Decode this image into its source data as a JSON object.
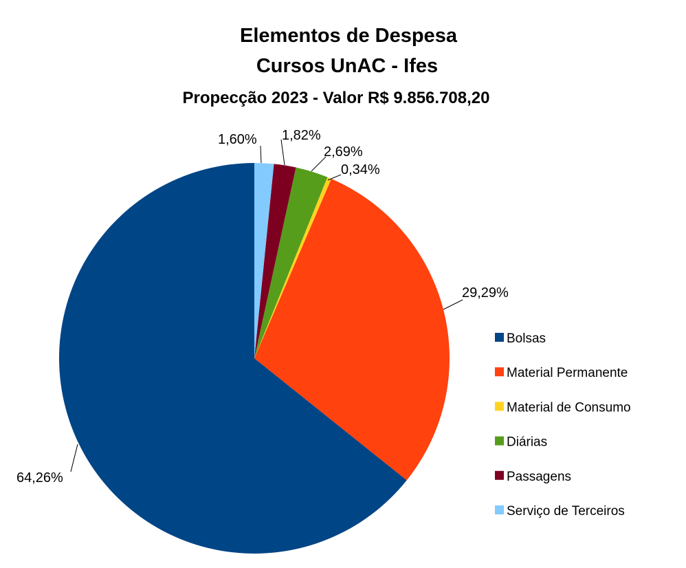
{
  "chart_data": {
    "type": "pie",
    "title": "Elementos de Despesa",
    "subtitle": "Cursos UnAC - Ifes",
    "subtitle2": "Propecção 2023 - Valor R$ 9.856.708,20",
    "legend_position": "right",
    "categories": [
      "Bolsas",
      "Material Permanente",
      "Material de Consumo",
      "Diárias",
      "Passagens",
      "Serviço de Terceiros"
    ],
    "values": [
      64.26,
      29.29,
      0.34,
      2.69,
      1.82,
      1.6
    ],
    "data_labels": [
      "64,26%",
      "29,29%",
      "0,34%",
      "2,69%",
      "1,82%",
      "1,60%"
    ],
    "colors": [
      "#004586",
      "#ff420e",
      "#ffd320",
      "#579d1c",
      "#7e0021",
      "#83caff"
    ]
  }
}
